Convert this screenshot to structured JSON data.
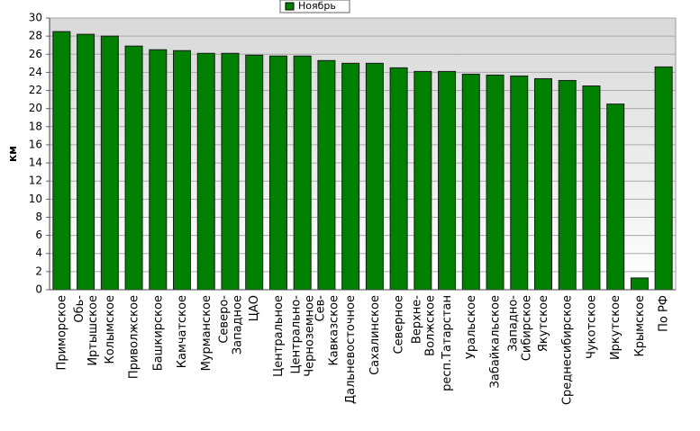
{
  "chart_data": {
    "type": "bar",
    "y_label": "км",
    "categories": [
      "Приморское",
      "Обь-Иртышское",
      "Колымское",
      "Приволжское",
      "Башкирское",
      "Камчатское",
      "Мурманское",
      "Северо-Западное",
      "ЦАО",
      "Центральное",
      "Центрально-Черноземное",
      "Сев-Кавказское",
      "Дальневосточное",
      "Сахалинское",
      "Северное",
      "Верхне-Волжское",
      "респ.Татарстан",
      "Уральское",
      "Забайкальское",
      "Западно-Сибирское",
      "Якутское",
      "Среднесибирское",
      "Чукотское",
      "Иркутское",
      "Крымское",
      "По РФ"
    ],
    "series": [
      {
        "name": "Ноябрь",
        "color": "#008000",
        "values": [
          28.5,
          28.2,
          28.0,
          26.9,
          26.5,
          26.4,
          26.1,
          26.1,
          25.9,
          25.8,
          25.8,
          25.3,
          25.0,
          25.0,
          24.5,
          24.1,
          24.1,
          23.8,
          23.7,
          23.6,
          23.3,
          23.1,
          22.5,
          20.5,
          1.3,
          24.6
        ]
      }
    ],
    "ylim": [
      0,
      30
    ],
    "yticks": [
      0,
      2,
      4,
      6,
      8,
      10,
      12,
      14,
      16,
      18,
      20,
      22,
      24,
      26,
      28,
      30
    ],
    "grid": true,
    "legend": "top"
  }
}
